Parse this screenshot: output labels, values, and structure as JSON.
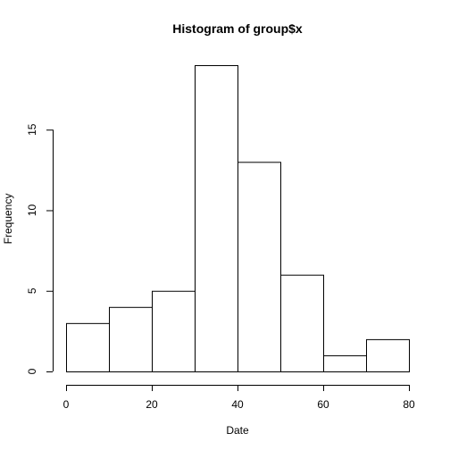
{
  "chart_data": {
    "type": "bar",
    "title": "Histogram of group$x",
    "xlabel": "Date",
    "ylabel": "Frequency",
    "bins": [
      {
        "start": 0,
        "end": 10,
        "value": 3
      },
      {
        "start": 10,
        "end": 20,
        "value": 4
      },
      {
        "start": 20,
        "end": 30,
        "value": 5
      },
      {
        "start": 30,
        "end": 40,
        "value": 19
      },
      {
        "start": 40,
        "end": 50,
        "value": 13
      },
      {
        "start": 50,
        "end": 60,
        "value": 6
      },
      {
        "start": 60,
        "end": 70,
        "value": 1
      },
      {
        "start": 70,
        "end": 80,
        "value": 2
      }
    ],
    "xlim": [
      0,
      80
    ],
    "ylim": [
      0,
      19
    ],
    "xticks": [
      0,
      20,
      40,
      60,
      80
    ],
    "yticks": [
      0,
      5,
      10,
      15
    ],
    "grid": false
  }
}
